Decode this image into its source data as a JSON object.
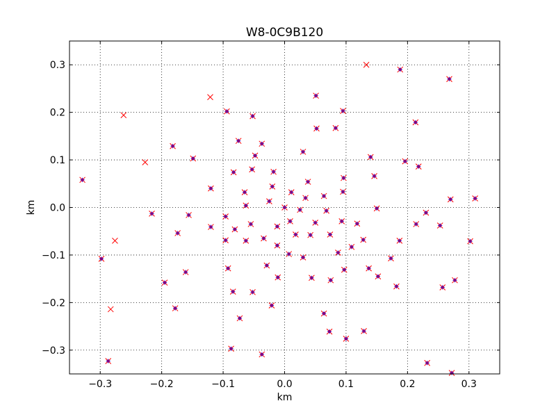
{
  "chart_data": {
    "type": "scatter",
    "title": "W8-0C9B120",
    "xlabel": "km",
    "ylabel": "km",
    "xlim": [
      -0.35,
      0.35
    ],
    "ylim": [
      -0.35,
      0.35
    ],
    "grid": true,
    "xticks": [
      -0.3,
      -0.2,
      -0.1,
      0.0,
      0.1,
      0.2,
      0.3
    ],
    "yticks": [
      -0.3,
      -0.2,
      -0.1,
      0.0,
      0.1,
      0.2,
      0.3
    ],
    "xtick_labels": [
      "−0.3",
      "−0.2",
      "−0.1",
      "0.0",
      "0.1",
      "0.2",
      "0.3"
    ],
    "ytick_labels": [
      "−0.3",
      "−0.2",
      "−0.1",
      "0.0",
      "0.1",
      "0.2",
      "0.3"
    ],
    "colors": {
      "x_marker": "#ff0000",
      "plus_marker": "#0000ff",
      "dot_marker": "#800080"
    },
    "series": [
      {
        "marker": "x",
        "color": "#ff0000",
        "points": [
          [
            -0.329,
            0.058
          ],
          [
            -0.298,
            -0.108
          ],
          [
            -0.287,
            -0.323
          ],
          [
            -0.283,
            -0.214
          ],
          [
            -0.276,
            -0.07
          ],
          [
            -0.262,
            0.194
          ],
          [
            -0.227,
            0.095
          ],
          [
            -0.216,
            -0.013
          ],
          [
            -0.195,
            -0.158
          ],
          [
            -0.182,
            0.129
          ],
          [
            -0.178,
            -0.212
          ],
          [
            -0.174,
            -0.054
          ],
          [
            -0.161,
            -0.136
          ],
          [
            -0.156,
            -0.016
          ],
          [
            -0.149,
            0.103
          ],
          [
            -0.121,
            0.232
          ],
          [
            -0.12,
            0.04
          ],
          [
            -0.12,
            -0.041
          ],
          [
            -0.096,
            -0.019
          ],
          [
            -0.096,
            -0.069
          ],
          [
            -0.094,
            0.202
          ],
          [
            -0.092,
            -0.128
          ],
          [
            -0.087,
            -0.297
          ],
          [
            -0.084,
            -0.177
          ],
          [
            -0.083,
            0.074
          ],
          [
            -0.081,
            -0.046
          ],
          [
            -0.075,
            0.14
          ],
          [
            -0.073,
            -0.233
          ],
          [
            -0.065,
            0.032
          ],
          [
            -0.063,
            0.004
          ],
          [
            -0.063,
            -0.07
          ],
          [
            -0.055,
            -0.035
          ],
          [
            -0.053,
            0.08
          ],
          [
            -0.052,
            0.192
          ],
          [
            -0.052,
            -0.178
          ],
          [
            -0.048,
            0.109
          ],
          [
            -0.037,
            0.134
          ],
          [
            -0.037,
            -0.309
          ],
          [
            -0.034,
            -0.065
          ],
          [
            -0.029,
            -0.122
          ],
          [
            -0.025,
            0.013
          ],
          [
            -0.021,
            -0.206
          ],
          [
            -0.02,
            0.044
          ],
          [
            -0.018,
            0.075
          ],
          [
            -0.012,
            -0.04
          ],
          [
            -0.012,
            -0.08
          ],
          [
            -0.011,
            -0.147
          ],
          [
            0.0,
            0.0
          ],
          [
            0.007,
            -0.098
          ],
          [
            0.009,
            -0.029
          ],
          [
            0.011,
            0.032
          ],
          [
            0.018,
            -0.057
          ],
          [
            0.025,
            -0.005
          ],
          [
            0.03,
            0.117
          ],
          [
            0.03,
            -0.105
          ],
          [
            0.034,
            0.02
          ],
          [
            0.038,
            0.054
          ],
          [
            0.042,
            -0.058
          ],
          [
            0.044,
            -0.148
          ],
          [
            0.05,
            -0.032
          ],
          [
            0.051,
            0.235
          ],
          [
            0.052,
            0.166
          ],
          [
            0.064,
            0.024
          ],
          [
            0.064,
            -0.223
          ],
          [
            0.068,
            -0.007
          ],
          [
            0.073,
            -0.261
          ],
          [
            0.074,
            -0.057
          ],
          [
            0.075,
            -0.153
          ],
          [
            0.083,
            0.167
          ],
          [
            0.087,
            -0.095
          ],
          [
            0.093,
            -0.029
          ],
          [
            0.095,
            0.033
          ],
          [
            0.095,
            0.203
          ],
          [
            0.096,
            0.062
          ],
          [
            0.097,
            -0.131
          ],
          [
            0.1,
            -0.276
          ],
          [
            0.109,
            -0.083
          ],
          [
            0.118,
            -0.034
          ],
          [
            0.128,
            -0.068
          ],
          [
            0.129,
            -0.26
          ],
          [
            0.133,
            0.3
          ],
          [
            0.137,
            -0.128
          ],
          [
            0.14,
            0.106
          ],
          [
            0.146,
            0.066
          ],
          [
            0.15,
            -0.002
          ],
          [
            0.152,
            -0.145
          ],
          [
            0.173,
            -0.107
          ],
          [
            0.182,
            -0.166
          ],
          [
            0.187,
            -0.07
          ],
          [
            0.188,
            0.29
          ],
          [
            0.196,
            0.097
          ],
          [
            0.213,
            0.179
          ],
          [
            0.214,
            -0.035
          ],
          [
            0.218,
            0.086
          ],
          [
            0.23,
            -0.011
          ],
          [
            0.232,
            -0.327
          ],
          [
            0.253,
            -0.038
          ],
          [
            0.257,
            -0.168
          ],
          [
            0.268,
            0.27
          ],
          [
            0.27,
            0.017
          ],
          [
            0.272,
            -0.348
          ],
          [
            0.277,
            -0.153
          ],
          [
            0.302,
            -0.071
          ],
          [
            0.31,
            0.019
          ]
        ]
      },
      {
        "marker": "+",
        "color": "#0000ff",
        "points": [
          [
            -0.329,
            0.058
          ],
          [
            -0.298,
            -0.108
          ],
          [
            -0.287,
            -0.323
          ],
          [
            -0.216,
            -0.013
          ],
          [
            -0.195,
            -0.158
          ],
          [
            -0.182,
            0.129
          ],
          [
            -0.178,
            -0.212
          ],
          [
            -0.174,
            -0.054
          ],
          [
            -0.161,
            -0.136
          ],
          [
            -0.156,
            -0.016
          ],
          [
            -0.149,
            0.103
          ],
          [
            -0.12,
            0.04
          ],
          [
            -0.12,
            -0.041
          ],
          [
            -0.096,
            -0.019
          ],
          [
            -0.096,
            -0.069
          ],
          [
            -0.094,
            0.202
          ],
          [
            -0.092,
            -0.128
          ],
          [
            -0.087,
            -0.297
          ],
          [
            -0.084,
            -0.177
          ],
          [
            -0.083,
            0.074
          ],
          [
            -0.081,
            -0.046
          ],
          [
            -0.075,
            0.14
          ],
          [
            -0.073,
            -0.233
          ],
          [
            -0.065,
            0.032
          ],
          [
            -0.063,
            0.004
          ],
          [
            -0.063,
            -0.07
          ],
          [
            -0.055,
            -0.035
          ],
          [
            -0.053,
            0.08
          ],
          [
            -0.052,
            0.192
          ],
          [
            -0.052,
            -0.178
          ],
          [
            -0.048,
            0.109
          ],
          [
            -0.037,
            0.134
          ],
          [
            -0.037,
            -0.309
          ],
          [
            -0.034,
            -0.065
          ],
          [
            -0.029,
            -0.122
          ],
          [
            -0.025,
            0.013
          ],
          [
            -0.021,
            -0.206
          ],
          [
            -0.02,
            0.044
          ],
          [
            -0.018,
            0.075
          ],
          [
            -0.012,
            -0.04
          ],
          [
            -0.012,
            -0.08
          ],
          [
            -0.011,
            -0.147
          ],
          [
            0.0,
            0.0
          ],
          [
            0.007,
            -0.098
          ],
          [
            0.009,
            -0.029
          ],
          [
            0.011,
            0.032
          ],
          [
            0.018,
            -0.057
          ],
          [
            0.025,
            -0.005
          ],
          [
            0.03,
            0.117
          ],
          [
            0.03,
            -0.105
          ],
          [
            0.034,
            0.02
          ],
          [
            0.038,
            0.054
          ],
          [
            0.042,
            -0.058
          ],
          [
            0.044,
            -0.148
          ],
          [
            0.05,
            -0.032
          ],
          [
            0.051,
            0.235
          ],
          [
            0.052,
            0.166
          ],
          [
            0.064,
            0.024
          ],
          [
            0.064,
            -0.223
          ],
          [
            0.068,
            -0.007
          ],
          [
            0.073,
            -0.261
          ],
          [
            0.074,
            -0.057
          ],
          [
            0.075,
            -0.153
          ],
          [
            0.083,
            0.167
          ],
          [
            0.087,
            -0.095
          ],
          [
            0.093,
            -0.029
          ],
          [
            0.095,
            0.033
          ],
          [
            0.095,
            0.203
          ],
          [
            0.096,
            0.062
          ],
          [
            0.097,
            -0.131
          ],
          [
            0.1,
            -0.276
          ],
          [
            0.109,
            -0.083
          ],
          [
            0.118,
            -0.034
          ],
          [
            0.128,
            -0.068
          ],
          [
            0.129,
            -0.26
          ],
          [
            0.137,
            -0.128
          ],
          [
            0.14,
            0.106
          ],
          [
            0.146,
            0.066
          ],
          [
            0.15,
            -0.002
          ],
          [
            0.152,
            -0.145
          ],
          [
            0.173,
            -0.107
          ],
          [
            0.182,
            -0.166
          ],
          [
            0.187,
            -0.07
          ],
          [
            0.188,
            0.29
          ],
          [
            0.196,
            0.097
          ],
          [
            0.213,
            0.179
          ],
          [
            0.214,
            -0.035
          ],
          [
            0.218,
            0.086
          ],
          [
            0.23,
            -0.011
          ],
          [
            0.232,
            -0.327
          ],
          [
            0.253,
            -0.038
          ],
          [
            0.257,
            -0.168
          ],
          [
            0.268,
            0.27
          ],
          [
            0.27,
            0.017
          ],
          [
            0.272,
            -0.348
          ],
          [
            0.277,
            -0.153
          ],
          [
            0.302,
            -0.071
          ],
          [
            0.31,
            0.019
          ]
        ]
      },
      {
        "marker": "dot",
        "color": "#800080",
        "points": [
          [
            -0.329,
            0.058
          ],
          [
            -0.298,
            -0.108
          ],
          [
            -0.287,
            -0.323
          ],
          [
            -0.216,
            -0.013
          ],
          [
            -0.195,
            -0.158
          ],
          [
            -0.182,
            0.129
          ],
          [
            -0.178,
            -0.212
          ],
          [
            -0.174,
            -0.054
          ],
          [
            -0.161,
            -0.136
          ],
          [
            -0.156,
            -0.016
          ],
          [
            -0.149,
            0.103
          ],
          [
            -0.12,
            0.04
          ],
          [
            -0.12,
            -0.041
          ],
          [
            -0.096,
            -0.019
          ],
          [
            -0.096,
            -0.069
          ],
          [
            -0.094,
            0.202
          ],
          [
            -0.092,
            -0.128
          ],
          [
            -0.087,
            -0.297
          ],
          [
            -0.084,
            -0.177
          ],
          [
            -0.083,
            0.074
          ],
          [
            -0.081,
            -0.046
          ],
          [
            -0.075,
            0.14
          ],
          [
            -0.073,
            -0.233
          ],
          [
            -0.065,
            0.032
          ],
          [
            -0.063,
            0.004
          ],
          [
            -0.063,
            -0.07
          ],
          [
            -0.055,
            -0.035
          ],
          [
            -0.053,
            0.08
          ],
          [
            -0.052,
            0.192
          ],
          [
            -0.052,
            -0.178
          ],
          [
            -0.048,
            0.109
          ],
          [
            -0.037,
            0.134
          ],
          [
            -0.037,
            -0.309
          ],
          [
            -0.034,
            -0.065
          ],
          [
            -0.029,
            -0.122
          ],
          [
            -0.025,
            0.013
          ],
          [
            -0.021,
            -0.206
          ],
          [
            -0.02,
            0.044
          ],
          [
            -0.018,
            0.075
          ],
          [
            -0.012,
            -0.04
          ],
          [
            -0.012,
            -0.08
          ],
          [
            -0.011,
            -0.147
          ],
          [
            0.0,
            0.0
          ],
          [
            0.007,
            -0.098
          ],
          [
            0.009,
            -0.029
          ],
          [
            0.011,
            0.032
          ],
          [
            0.018,
            -0.057
          ],
          [
            0.025,
            -0.005
          ],
          [
            0.03,
            0.117
          ],
          [
            0.03,
            -0.105
          ],
          [
            0.034,
            0.02
          ],
          [
            0.038,
            0.054
          ],
          [
            0.042,
            -0.058
          ],
          [
            0.044,
            -0.148
          ],
          [
            0.05,
            -0.032
          ],
          [
            0.051,
            0.235
          ],
          [
            0.052,
            0.166
          ],
          [
            0.064,
            0.024
          ],
          [
            0.064,
            -0.223
          ],
          [
            0.068,
            -0.007
          ],
          [
            0.073,
            -0.261
          ],
          [
            0.074,
            -0.057
          ],
          [
            0.075,
            -0.153
          ],
          [
            0.083,
            0.167
          ],
          [
            0.087,
            -0.095
          ],
          [
            0.093,
            -0.029
          ],
          [
            0.095,
            0.033
          ],
          [
            0.095,
            0.203
          ],
          [
            0.096,
            0.062
          ],
          [
            0.097,
            -0.131
          ],
          [
            0.1,
            -0.276
          ],
          [
            0.109,
            -0.083
          ],
          [
            0.118,
            -0.034
          ],
          [
            0.128,
            -0.068
          ],
          [
            0.129,
            -0.26
          ],
          [
            0.137,
            -0.128
          ],
          [
            0.14,
            0.106
          ],
          [
            0.146,
            0.066
          ],
          [
            0.15,
            -0.002
          ],
          [
            0.152,
            -0.145
          ],
          [
            0.173,
            -0.107
          ],
          [
            0.182,
            -0.166
          ],
          [
            0.187,
            -0.07
          ],
          [
            0.188,
            0.29
          ],
          [
            0.196,
            0.097
          ],
          [
            0.213,
            0.179
          ],
          [
            0.214,
            -0.035
          ],
          [
            0.218,
            0.086
          ],
          [
            0.23,
            -0.011
          ],
          [
            0.232,
            -0.327
          ],
          [
            0.253,
            -0.038
          ],
          [
            0.257,
            -0.168
          ],
          [
            0.268,
            0.27
          ],
          [
            0.27,
            0.017
          ],
          [
            0.272,
            -0.348
          ],
          [
            0.277,
            -0.153
          ],
          [
            0.302,
            -0.071
          ],
          [
            0.31,
            0.019
          ]
        ]
      }
    ]
  }
}
